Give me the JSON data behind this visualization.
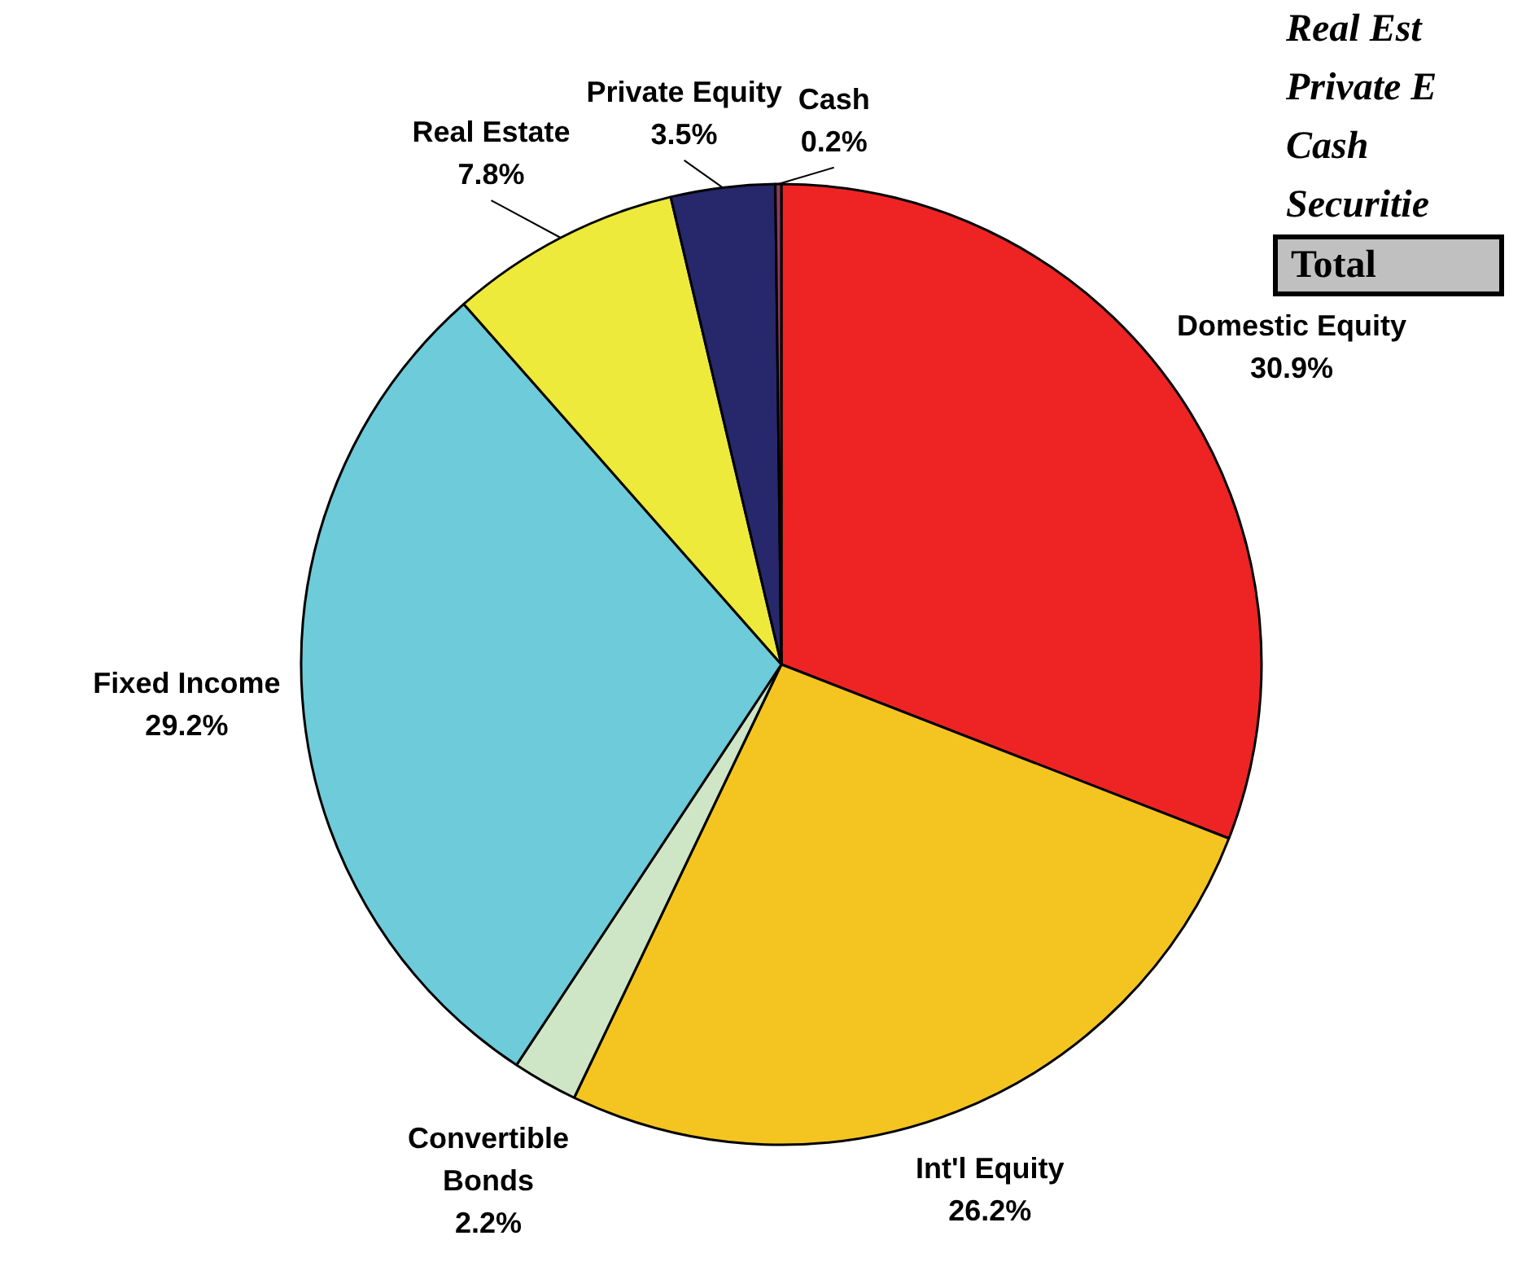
{
  "chart_data": {
    "type": "pie",
    "categories": [
      "Domestic Equity",
      "Int'l Equity",
      "Convertible Bonds",
      "Fixed Income",
      "Real Estate",
      "Private Equity",
      "Cash"
    ],
    "values": [
      30.9,
      26.2,
      2.2,
      29.2,
      7.8,
      3.5,
      0.2
    ],
    "value_labels": [
      "30.9%",
      "26.2%",
      "2.2%",
      "29.2%",
      "7.8%",
      "3.5%",
      "0.2%"
    ],
    "colors": [
      "#ee2424",
      "#f4c520",
      "#cfe6c6",
      "#6ecbd9",
      "#eeea3c",
      "#27276b",
      "#8b3a62"
    ],
    "legend": false,
    "annotations": [
      "Real Est",
      "Private E",
      "Cash",
      "Securitie",
      "Total"
    ]
  }
}
